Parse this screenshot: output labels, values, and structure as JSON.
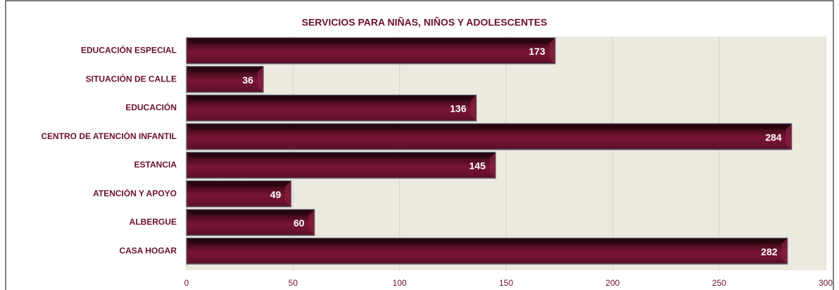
{
  "chart_data": {
    "type": "bar",
    "orientation": "horizontal",
    "title": "SERVICIOS PARA NIÑAS, NIÑOS Y ADOLESCENTES",
    "categories": [
      "EDUCACIÓN ESPECIAL",
      "SITUACIÓN DE CALLE",
      "EDUCACIÓN",
      "CENTRO DE ATENCIÓN INFANTIL",
      "ESTANCIA",
      "ATENCIÓN Y APOYO",
      "ALBERGUE",
      "CASA HOGAR"
    ],
    "values": [
      173,
      36,
      136,
      284,
      145,
      49,
      60,
      282
    ],
    "color": "#6e1230",
    "xlim": [
      0,
      300
    ],
    "xticks": [
      0,
      50,
      100,
      150,
      200,
      250,
      300
    ],
    "grid": true
  }
}
